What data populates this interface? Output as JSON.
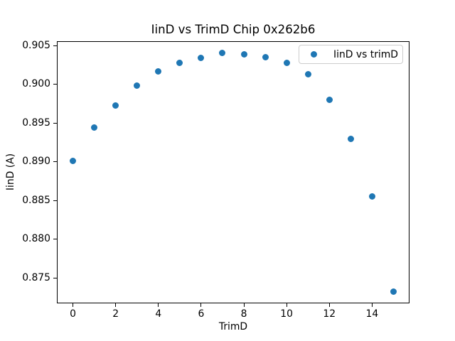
{
  "chart_data": {
    "type": "scatter",
    "title": "IinD vs TrimD Chip 0x262b6",
    "xlabel": "TrimD",
    "ylabel": "IinD (A)",
    "series": [
      {
        "name": "IinD vs trimD",
        "x": [
          0,
          1,
          2,
          3,
          4,
          5,
          6,
          7,
          8,
          9,
          10,
          11,
          12,
          13,
          14,
          15
        ],
        "y": [
          0.8901,
          0.8944,
          0.8973,
          0.8999,
          0.9017,
          0.9028,
          0.9034,
          0.9041,
          0.9039,
          0.9035,
          0.9028,
          0.9013,
          0.898,
          0.893,
          0.8855,
          0.8732
        ]
      }
    ],
    "xlim": [
      -0.75,
      15.75
    ],
    "ylim": [
      0.8717,
      0.9056
    ],
    "xticks": {
      "values": [
        0,
        2,
        4,
        6,
        8,
        10,
        12,
        14
      ],
      "labels": [
        "0",
        "2",
        "4",
        "6",
        "8",
        "10",
        "12",
        "14"
      ]
    },
    "yticks": {
      "values": [
        0.875,
        0.88,
        0.885,
        0.89,
        0.895,
        0.9,
        0.905
      ],
      "labels": [
        "0.875",
        "0.880",
        "0.885",
        "0.890",
        "0.895",
        "0.900",
        "0.905"
      ]
    },
    "grid": false,
    "legend_position": "upper right",
    "colors": {
      "marker": "#1f77b4",
      "legend_border": "#cccccc",
      "axis": "#000000",
      "background": "#ffffff"
    }
  }
}
